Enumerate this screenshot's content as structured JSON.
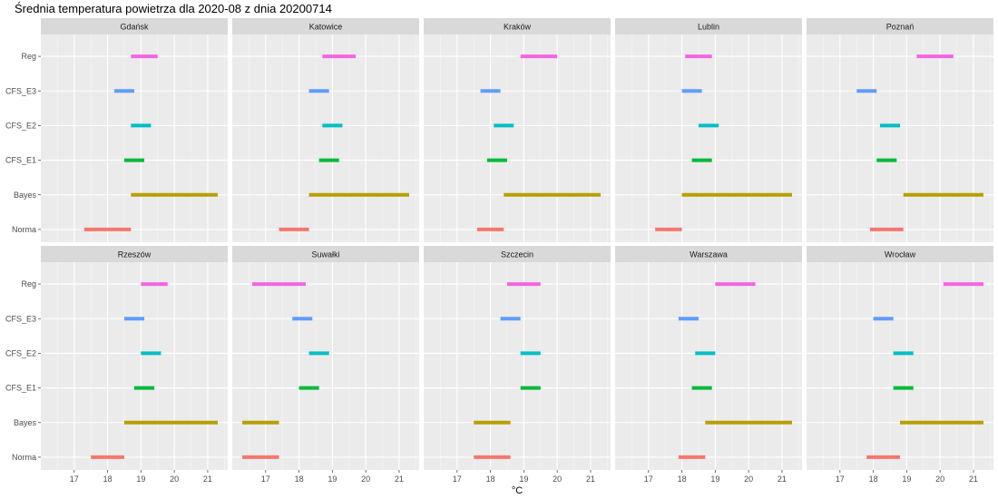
{
  "chart_data": {
    "type": "range-bar-facet",
    "title": "Średnia temperatura powietrza dla 2020-08 z dnia 20200714",
    "xlabel": "°C",
    "ylabel": "",
    "xlim": [
      16,
      21.6
    ],
    "x_ticks": [
      17,
      18,
      19,
      20,
      21
    ],
    "grid": true,
    "legend": "none",
    "categories": [
      "Reg",
      "CFS_E3",
      "CFS_E2",
      "CFS_E1",
      "Bayes",
      "Norma"
    ],
    "colors": {
      "Reg": "#F564E3",
      "CFS_E3": "#619CFF",
      "CFS_E2": "#00BFC4",
      "CFS_E1": "#00BA38",
      "Bayes": "#B79F00",
      "Norma": "#F8766D"
    },
    "panels": [
      {
        "name": "Gdańsk",
        "ranges": {
          "Reg": [
            18.7,
            19.5
          ],
          "CFS_E3": [
            18.2,
            18.8
          ],
          "CFS_E2": [
            18.7,
            19.3
          ],
          "CFS_E1": [
            18.5,
            19.1
          ],
          "Bayes": [
            18.7,
            21.3
          ],
          "Norma": [
            17.3,
            18.7
          ]
        }
      },
      {
        "name": "Katowice",
        "ranges": {
          "Reg": [
            18.7,
            19.7
          ],
          "CFS_E3": [
            18.3,
            18.9
          ],
          "CFS_E2": [
            18.7,
            19.3
          ],
          "CFS_E1": [
            18.6,
            19.2
          ],
          "Bayes": [
            18.3,
            21.3
          ],
          "Norma": [
            17.4,
            18.3
          ]
        }
      },
      {
        "name": "Kraków",
        "ranges": {
          "Reg": [
            18.9,
            20.0
          ],
          "CFS_E3": [
            17.7,
            18.3
          ],
          "CFS_E2": [
            18.1,
            18.7
          ],
          "CFS_E1": [
            17.9,
            18.5
          ],
          "Bayes": [
            18.4,
            21.3
          ],
          "Norma": [
            17.6,
            18.4
          ]
        }
      },
      {
        "name": "Lublin",
        "ranges": {
          "Reg": [
            18.1,
            18.9
          ],
          "CFS_E3": [
            18.0,
            18.6
          ],
          "CFS_E2": [
            18.5,
            19.1
          ],
          "CFS_E1": [
            18.3,
            18.9
          ],
          "Bayes": [
            18.0,
            21.3
          ],
          "Norma": [
            17.2,
            18.0
          ]
        }
      },
      {
        "name": "Poznań",
        "ranges": {
          "Reg": [
            19.3,
            20.4
          ],
          "CFS_E3": [
            17.5,
            18.1
          ],
          "CFS_E2": [
            18.2,
            18.8
          ],
          "CFS_E1": [
            18.1,
            18.7
          ],
          "Bayes": [
            18.9,
            21.3
          ],
          "Norma": [
            17.9,
            18.9
          ]
        }
      },
      {
        "name": "Rzeszów",
        "ranges": {
          "Reg": [
            19.0,
            19.8
          ],
          "CFS_E3": [
            18.5,
            19.1
          ],
          "CFS_E2": [
            19.0,
            19.6
          ],
          "CFS_E1": [
            18.8,
            19.4
          ],
          "Bayes": [
            18.5,
            21.3
          ],
          "Norma": [
            17.5,
            18.5
          ]
        }
      },
      {
        "name": "Suwałki",
        "ranges": {
          "Reg": [
            16.6,
            18.2
          ],
          "CFS_E3": [
            17.8,
            18.4
          ],
          "CFS_E2": [
            18.3,
            18.9
          ],
          "CFS_E1": [
            18.0,
            18.6
          ],
          "Bayes": [
            16.3,
            17.4
          ],
          "Norma": [
            16.3,
            17.4
          ]
        }
      },
      {
        "name": "Szczecin",
        "ranges": {
          "Reg": [
            18.5,
            19.5
          ],
          "CFS_E3": [
            18.3,
            18.9
          ],
          "CFS_E2": [
            18.9,
            19.5
          ],
          "CFS_E1": [
            18.9,
            19.5
          ],
          "Bayes": [
            17.5,
            18.6
          ],
          "Norma": [
            17.5,
            18.6
          ]
        }
      },
      {
        "name": "Warszawa",
        "ranges": {
          "Reg": [
            19.0,
            20.2
          ],
          "CFS_E3": [
            17.9,
            18.5
          ],
          "CFS_E2": [
            18.4,
            19.0
          ],
          "CFS_E1": [
            18.3,
            18.9
          ],
          "Bayes": [
            18.7,
            21.3
          ],
          "Norma": [
            17.9,
            18.7
          ]
        }
      },
      {
        "name": "Wrocław",
        "ranges": {
          "Reg": [
            20.1,
            21.3
          ],
          "CFS_E3": [
            18.0,
            18.6
          ],
          "CFS_E2": [
            18.6,
            19.2
          ],
          "CFS_E1": [
            18.6,
            19.2
          ],
          "Bayes": [
            18.8,
            21.3
          ],
          "Norma": [
            17.8,
            18.8
          ]
        }
      }
    ]
  }
}
